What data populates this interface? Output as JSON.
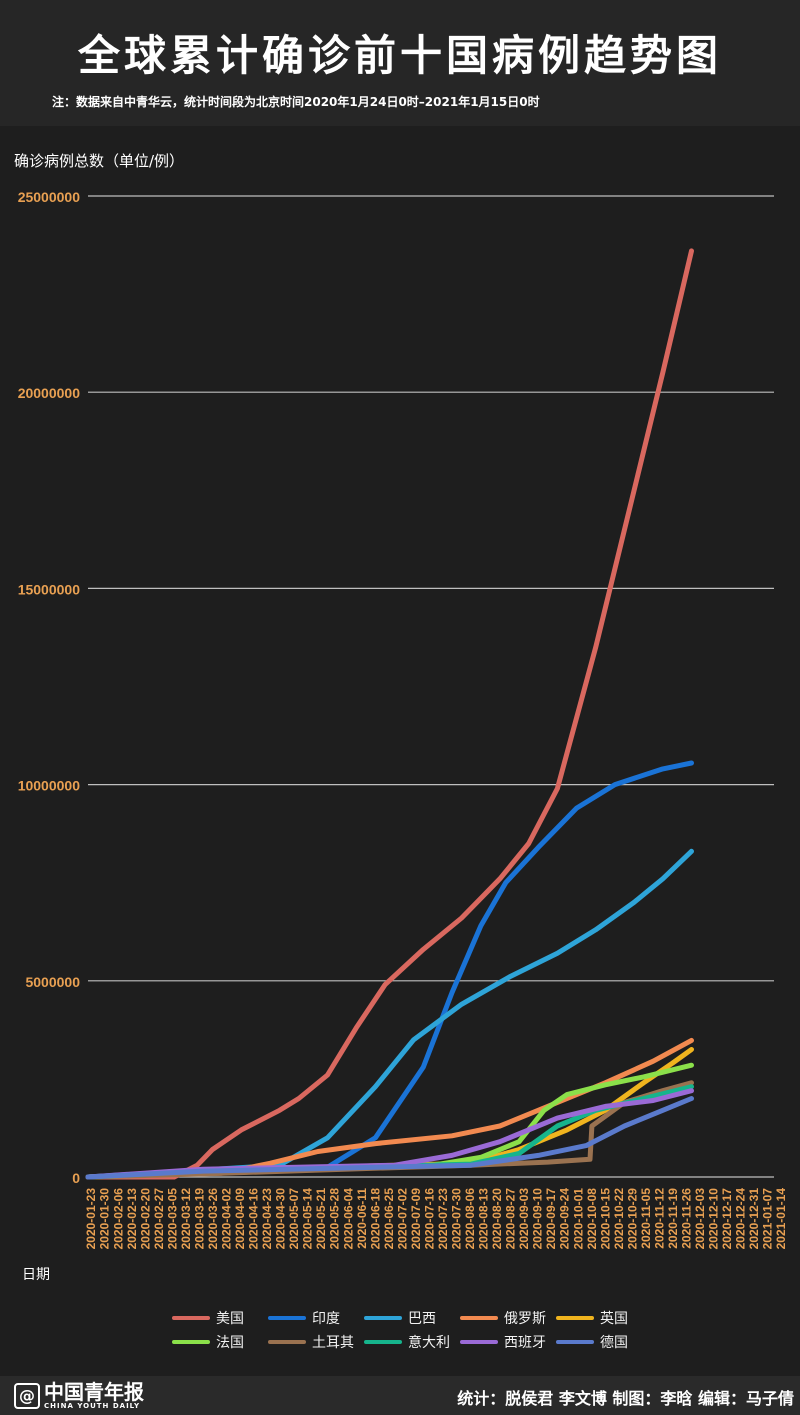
{
  "header": {
    "title": "全球累计确诊前十国病例趋势图",
    "note": "注：数据来自中青华云，统计时间段为北京时间2020年1月24日0时–2021年1月15日0时"
  },
  "footer": {
    "logo_mark": "@",
    "logo_cn": "中国青年报",
    "logo_en": "CHINA YOUTH DAILY",
    "credits": "统计：脱侯君 李文博 制图：李晗 编辑：马子倩"
  },
  "colors": {
    "background": "#1c1c1c",
    "axis_tick": "#e8a052",
    "grid": "#bfbfbf"
  },
  "chart_data": {
    "type": "line",
    "ylabel": "确诊病例总数（单位/例）",
    "xlabel": "日期",
    "ylim": [
      0,
      25000000
    ],
    "yticks": [
      "0",
      "5000000",
      "10000000",
      "15000000",
      "20000000",
      "25000000"
    ],
    "grid": true,
    "legend_position": "bottom",
    "x_ticks": [
      "2020-01-23",
      "2020-01-30",
      "2020-02-06",
      "2020-02-13",
      "2020-02-20",
      "2020-02-27",
      "2020-03-05",
      "2020-03-12",
      "2020-03-19",
      "2020-03-26",
      "2020-04-02",
      "2020-04-09",
      "2020-04-16",
      "2020-04-23",
      "2020-04-30",
      "2020-05-07",
      "2020-05-14",
      "2020-05-21",
      "2020-05-28",
      "2020-06-04",
      "2020-06-11",
      "2020-06-18",
      "2020-06-25",
      "2020-07-02",
      "2020-07-09",
      "2020-07-16",
      "2020-07-23",
      "2020-07-30",
      "2020-08-06",
      "2020-08-13",
      "2020-08-20",
      "2020-08-27",
      "2020-09-03",
      "2020-09-10",
      "2020-09-17",
      "2020-09-24",
      "2020-10-01",
      "2020-10-08",
      "2020-10-15",
      "2020-10-22",
      "2020-10-29",
      "2020-11-05",
      "2020-11-12",
      "2020-11-19",
      "2020-11-26",
      "2020-12-03",
      "2020-12-10",
      "2020-12-17",
      "2020-12-24",
      "2020-12-31",
      "2021-01-07",
      "2021-01-14"
    ],
    "series": [
      {
        "name": "美国",
        "color": "#d9685f",
        "points": [
          [
            0,
            0
          ],
          [
            45,
            0
          ],
          [
            57,
            300000
          ],
          [
            65,
            700000
          ],
          [
            80,
            1200000
          ],
          [
            100,
            1700000
          ],
          [
            110,
            2000000
          ],
          [
            125,
            2600000
          ],
          [
            140,
            3800000
          ],
          [
            155,
            4900000
          ],
          [
            175,
            5800000
          ],
          [
            195,
            6600000
          ],
          [
            215,
            7600000
          ],
          [
            230,
            8500000
          ],
          [
            245,
            9900000
          ],
          [
            265,
            13500000
          ],
          [
            285,
            17500000
          ],
          [
            300,
            20500000
          ],
          [
            315,
            23600000
          ]
        ]
      },
      {
        "name": "印度",
        "color": "#1a73d6",
        "points": [
          [
            0,
            0
          ],
          [
            125,
            250000
          ],
          [
            150,
            1000000
          ],
          [
            175,
            2800000
          ],
          [
            190,
            4700000
          ],
          [
            205,
            6400000
          ],
          [
            218,
            7500000
          ],
          [
            235,
            8400000
          ],
          [
            255,
            9400000
          ],
          [
            275,
            10000000
          ],
          [
            300,
            10400000
          ],
          [
            315,
            10550000
          ]
        ]
      },
      {
        "name": "巴西",
        "color": "#2ea4d8",
        "points": [
          [
            0,
            0
          ],
          [
            100,
            300000
          ],
          [
            125,
            1000000
          ],
          [
            150,
            2300000
          ],
          [
            170,
            3500000
          ],
          [
            195,
            4400000
          ],
          [
            220,
            5100000
          ],
          [
            245,
            5700000
          ],
          [
            265,
            6300000
          ],
          [
            285,
            7000000
          ],
          [
            300,
            7600000
          ],
          [
            315,
            8300000
          ]
        ]
      },
      {
        "name": "俄罗斯",
        "color": "#f28a50",
        "points": [
          [
            0,
            0
          ],
          [
            70,
            100000
          ],
          [
            95,
            350000
          ],
          [
            120,
            650000
          ],
          [
            150,
            850000
          ],
          [
            190,
            1050000
          ],
          [
            215,
            1300000
          ],
          [
            245,
            1900000
          ],
          [
            270,
            2400000
          ],
          [
            295,
            2950000
          ],
          [
            315,
            3480000
          ]
        ]
      },
      {
        "name": "英国",
        "color": "#f0b41e",
        "points": [
          [
            0,
            0
          ],
          [
            90,
            200000
          ],
          [
            120,
            250000
          ],
          [
            200,
            350000
          ],
          [
            225,
            700000
          ],
          [
            250,
            1200000
          ],
          [
            270,
            1700000
          ],
          [
            290,
            2400000
          ],
          [
            305,
            2900000
          ],
          [
            315,
            3250000
          ]
        ]
      },
      {
        "name": "法国",
        "color": "#8be04a",
        "points": [
          [
            0,
            0
          ],
          [
            80,
            120000
          ],
          [
            180,
            300000
          ],
          [
            205,
            500000
          ],
          [
            225,
            900000
          ],
          [
            238,
            1700000
          ],
          [
            250,
            2100000
          ],
          [
            270,
            2350000
          ],
          [
            290,
            2550000
          ],
          [
            315,
            2850000
          ]
        ]
      },
      {
        "name": "土耳其",
        "color": "#9a7250",
        "points": [
          [
            0,
            0
          ],
          [
            60,
            80000
          ],
          [
            110,
            160000
          ],
          [
            200,
            300000
          ],
          [
            240,
            380000
          ],
          [
            262,
            450000
          ],
          [
            263,
            1300000
          ],
          [
            280,
            1900000
          ],
          [
            300,
            2200000
          ],
          [
            315,
            2400000
          ]
        ]
      },
      {
        "name": "意大利",
        "color": "#16b48c",
        "points": [
          [
            0,
            0
          ],
          [
            55,
            150000
          ],
          [
            200,
            330000
          ],
          [
            225,
            600000
          ],
          [
            245,
            1300000
          ],
          [
            265,
            1700000
          ],
          [
            290,
            2000000
          ],
          [
            315,
            2300000
          ]
        ]
      },
      {
        "name": "西班牙",
        "color": "#9a6ad6",
        "points": [
          [
            0,
            0
          ],
          [
            60,
            200000
          ],
          [
            160,
            300000
          ],
          [
            190,
            550000
          ],
          [
            215,
            900000
          ],
          [
            245,
            1500000
          ],
          [
            270,
            1800000
          ],
          [
            295,
            1950000
          ],
          [
            315,
            2200000
          ]
        ]
      },
      {
        "name": "德国",
        "color": "#5a7acc",
        "points": [
          [
            0,
            0
          ],
          [
            60,
            150000
          ],
          [
            200,
            300000
          ],
          [
            235,
            550000
          ],
          [
            260,
            800000
          ],
          [
            280,
            1300000
          ],
          [
            300,
            1700000
          ],
          [
            315,
            2000000
          ]
        ]
      }
    ]
  }
}
